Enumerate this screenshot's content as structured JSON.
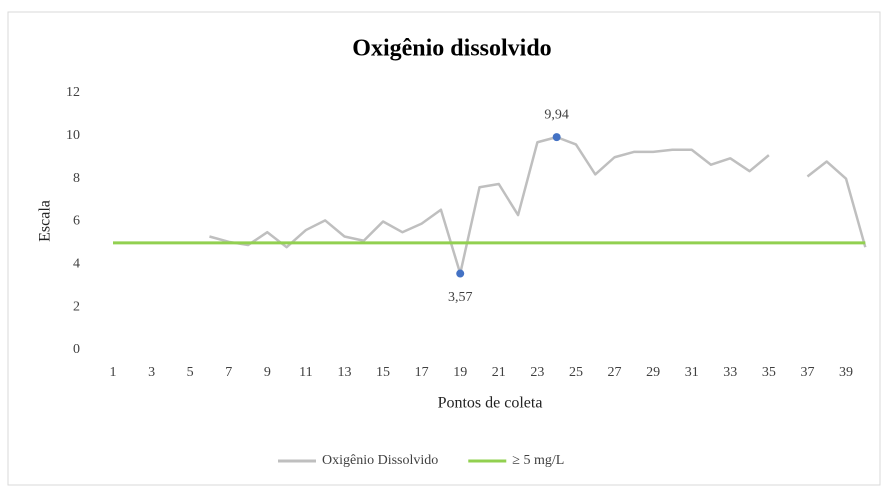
{
  "chart_data": {
    "type": "line",
    "title": "Oxigênio dissolvido",
    "x_label": "Pontos de coleta",
    "y_label": "Escala",
    "categories": [
      "1",
      null,
      "3",
      null,
      "5",
      null,
      "7",
      null,
      "9",
      null,
      "11",
      null,
      "13",
      null,
      "15",
      null,
      "17",
      null,
      "19",
      null,
      "21",
      null,
      "23",
      null,
      "25",
      null,
      "27",
      null,
      "29",
      null,
      "31",
      null,
      "33",
      null,
      "35",
      null,
      "37",
      null,
      "39",
      null
    ],
    "series": [
      {
        "name": "Oxigênio Dissolvido",
        "color": "#bfbfbf",
        "values": [
          null,
          null,
          null,
          null,
          null,
          5.3,
          5.05,
          4.9,
          5.5,
          4.8,
          5.6,
          6.05,
          5.3,
          5.1,
          6.0,
          5.5,
          5.9,
          6.55,
          3.57,
          7.6,
          7.75,
          6.3,
          9.7,
          9.94,
          9.6,
          8.2,
          9.0,
          9.25,
          9.25,
          9.35,
          9.35,
          8.65,
          8.95,
          8.35,
          9.1,
          null,
          8.1,
          8.8,
          8.0,
          4.8
        ],
        "value_labels": [
          null,
          null,
          null,
          null,
          null,
          null,
          null,
          null,
          null,
          null,
          null,
          null,
          null,
          null,
          null,
          null,
          null,
          null,
          "3,57",
          null,
          null,
          null,
          null,
          "9,94",
          null,
          null,
          null,
          null,
          null,
          null,
          null,
          null,
          null,
          null,
          null,
          null,
          null,
          null,
          null,
          null
        ],
        "marker_color": "#4472c4"
      },
      {
        "name": "≥ 5 mg/L",
        "color": "#92d050",
        "values": [
          5,
          5,
          5,
          5,
          5,
          5,
          5,
          5,
          5,
          5,
          5,
          5,
          5,
          5,
          5,
          5,
          5,
          5,
          5,
          5,
          5,
          5,
          5,
          5,
          5,
          5,
          5,
          5,
          5,
          5,
          5,
          5,
          5,
          5,
          5,
          5,
          5,
          5,
          5,
          5
        ]
      }
    ],
    "ylim": [
      0,
      12
    ],
    "yticks": [
      0,
      2,
      4,
      6,
      8,
      10,
      12
    ],
    "grid": false,
    "legend": "bottom"
  }
}
